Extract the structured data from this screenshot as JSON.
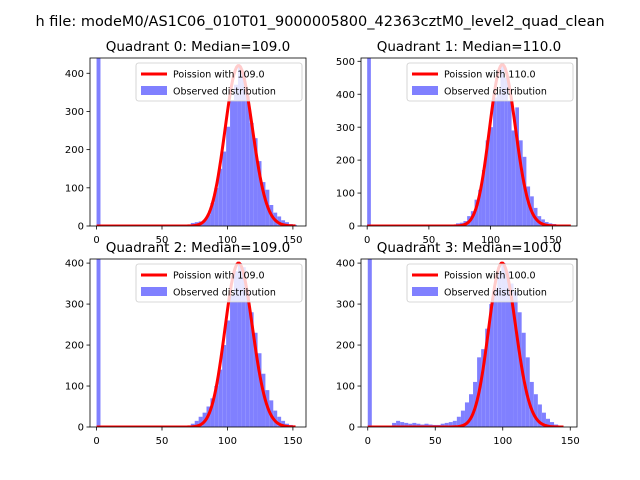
{
  "figure": {
    "suptitle": "h file: modeM0/AS1C06_010T01_9000005800_42363cztM0_level2_quad_clean"
  },
  "colors": {
    "fit_line": "#ff0000",
    "bars": "#8080ff",
    "axes": "#000000",
    "legend_border": "#cccccc"
  },
  "chart_data": [
    {
      "type": "bar",
      "title": "Quadrant 0: Median=109.0",
      "xlim": [
        -5,
        160
      ],
      "ylim": [
        0,
        440
      ],
      "xticks": [
        0,
        50,
        100,
        150
      ],
      "yticks": [
        0,
        100,
        200,
        300,
        400
      ],
      "legend": {
        "placement": "upper-right",
        "entries": [
          "Poission with 109.0",
          "Observed distribution"
        ]
      },
      "bin_width": 3,
      "bins": [
        {
          "x": 0,
          "y": 440
        },
        {
          "x": 72,
          "y": 8
        },
        {
          "x": 75,
          "y": 10
        },
        {
          "x": 78,
          "y": 12
        },
        {
          "x": 81,
          "y": 15
        },
        {
          "x": 84,
          "y": 30
        },
        {
          "x": 87,
          "y": 60
        },
        {
          "x": 90,
          "y": 100
        },
        {
          "x": 93,
          "y": 150
        },
        {
          "x": 96,
          "y": 195
        },
        {
          "x": 99,
          "y": 260
        },
        {
          "x": 102,
          "y": 330
        },
        {
          "x": 105,
          "y": 370
        },
        {
          "x": 108,
          "y": 420
        },
        {
          "x": 111,
          "y": 400
        },
        {
          "x": 114,
          "y": 340
        },
        {
          "x": 117,
          "y": 270
        },
        {
          "x": 120,
          "y": 230
        },
        {
          "x": 123,
          "y": 170
        },
        {
          "x": 126,
          "y": 115
        },
        {
          "x": 129,
          "y": 95
        },
        {
          "x": 132,
          "y": 55
        },
        {
          "x": 135,
          "y": 35
        },
        {
          "x": 138,
          "y": 25
        },
        {
          "x": 141,
          "y": 15
        },
        {
          "x": 144,
          "y": 10
        },
        {
          "x": 147,
          "y": 5
        },
        {
          "x": 150,
          "y": 3
        }
      ],
      "fit": {
        "label": "Poission with 109.0",
        "mean": 109.0,
        "x_range": [
          0,
          152
        ],
        "peak": 420
      }
    },
    {
      "type": "bar",
      "title": "Quadrant 1: Median=110.0",
      "xlim": [
        -5,
        170
      ],
      "ylim": [
        0,
        510
      ],
      "xticks": [
        0,
        50,
        100,
        150
      ],
      "yticks": [
        0,
        100,
        200,
        300,
        400,
        500
      ],
      "legend": {
        "placement": "upper-right",
        "entries": [
          "Poission with 110.0",
          "Observed distribution"
        ]
      },
      "bin_width": 3,
      "bins": [
        {
          "x": 0,
          "y": 510
        },
        {
          "x": 72,
          "y": 8
        },
        {
          "x": 75,
          "y": 10
        },
        {
          "x": 78,
          "y": 15
        },
        {
          "x": 81,
          "y": 30
        },
        {
          "x": 84,
          "y": 45
        },
        {
          "x": 87,
          "y": 80
        },
        {
          "x": 90,
          "y": 110
        },
        {
          "x": 93,
          "y": 170
        },
        {
          "x": 96,
          "y": 260
        },
        {
          "x": 99,
          "y": 300
        },
        {
          "x": 102,
          "y": 390
        },
        {
          "x": 105,
          "y": 400
        },
        {
          "x": 108,
          "y": 490
        },
        {
          "x": 111,
          "y": 450
        },
        {
          "x": 114,
          "y": 380
        },
        {
          "x": 117,
          "y": 290
        },
        {
          "x": 120,
          "y": 360
        },
        {
          "x": 123,
          "y": 260
        },
        {
          "x": 126,
          "y": 210
        },
        {
          "x": 129,
          "y": 120
        },
        {
          "x": 132,
          "y": 90
        },
        {
          "x": 135,
          "y": 55
        },
        {
          "x": 138,
          "y": 30
        },
        {
          "x": 141,
          "y": 20
        },
        {
          "x": 144,
          "y": 12
        },
        {
          "x": 147,
          "y": 8
        },
        {
          "x": 150,
          "y": 6
        },
        {
          "x": 153,
          "y": 3
        }
      ],
      "fit": {
        "label": "Poission with 110.0",
        "mean": 110.0,
        "x_range": [
          0,
          165
        ],
        "peak": 490
      }
    },
    {
      "type": "bar",
      "title": "Quadrant 2: Median=109.0",
      "xlim": [
        -5,
        160
      ],
      "ylim": [
        0,
        410
      ],
      "xticks": [
        0,
        50,
        100,
        150
      ],
      "yticks": [
        0,
        100,
        200,
        300,
        400
      ],
      "legend": {
        "placement": "upper-right",
        "entries": [
          "Poission with 109.0",
          "Observed distribution"
        ]
      },
      "bin_width": 3,
      "bins": [
        {
          "x": 0,
          "y": 410
        },
        {
          "x": 72,
          "y": 8
        },
        {
          "x": 75,
          "y": 15
        },
        {
          "x": 78,
          "y": 25
        },
        {
          "x": 81,
          "y": 35
        },
        {
          "x": 84,
          "y": 50
        },
        {
          "x": 87,
          "y": 70
        },
        {
          "x": 90,
          "y": 100
        },
        {
          "x": 93,
          "y": 140
        },
        {
          "x": 96,
          "y": 200
        },
        {
          "x": 99,
          "y": 260
        },
        {
          "x": 102,
          "y": 320
        },
        {
          "x": 105,
          "y": 380
        },
        {
          "x": 108,
          "y": 400
        },
        {
          "x": 111,
          "y": 390
        },
        {
          "x": 114,
          "y": 330
        },
        {
          "x": 117,
          "y": 280
        },
        {
          "x": 120,
          "y": 230
        },
        {
          "x": 123,
          "y": 180
        },
        {
          "x": 126,
          "y": 130
        },
        {
          "x": 129,
          "y": 90
        },
        {
          "x": 132,
          "y": 65
        },
        {
          "x": 135,
          "y": 40
        },
        {
          "x": 138,
          "y": 25
        },
        {
          "x": 141,
          "y": 15
        },
        {
          "x": 144,
          "y": 8
        },
        {
          "x": 147,
          "y": 5
        }
      ],
      "fit": {
        "label": "Poission with 109.0",
        "mean": 109.0,
        "x_range": [
          0,
          152
        ],
        "peak": 400
      }
    },
    {
      "type": "bar",
      "title": "Quadrant 3: Median=100.0",
      "xlim": [
        -5,
        155
      ],
      "ylim": [
        0,
        410
      ],
      "xticks": [
        0,
        50,
        100,
        150
      ],
      "yticks": [
        0,
        100,
        200,
        300,
        400
      ],
      "legend": {
        "placement": "upper-right",
        "entries": [
          "Poission with 100.0",
          "Observed distribution"
        ]
      },
      "bin_width": 3,
      "bins": [
        {
          "x": 0,
          "y": 410
        },
        {
          "x": 18,
          "y": 10
        },
        {
          "x": 21,
          "y": 15
        },
        {
          "x": 24,
          "y": 12
        },
        {
          "x": 27,
          "y": 10
        },
        {
          "x": 30,
          "y": 8
        },
        {
          "x": 33,
          "y": 10
        },
        {
          "x": 36,
          "y": 8
        },
        {
          "x": 39,
          "y": 6
        },
        {
          "x": 42,
          "y": 8
        },
        {
          "x": 45,
          "y": 6
        },
        {
          "x": 48,
          "y": 5
        },
        {
          "x": 51,
          "y": 5
        },
        {
          "x": 54,
          "y": 8
        },
        {
          "x": 57,
          "y": 10
        },
        {
          "x": 60,
          "y": 12
        },
        {
          "x": 63,
          "y": 15
        },
        {
          "x": 66,
          "y": 25
        },
        {
          "x": 69,
          "y": 40
        },
        {
          "x": 72,
          "y": 60
        },
        {
          "x": 75,
          "y": 80
        },
        {
          "x": 78,
          "y": 110
        },
        {
          "x": 81,
          "y": 170
        },
        {
          "x": 84,
          "y": 190
        },
        {
          "x": 87,
          "y": 240
        },
        {
          "x": 90,
          "y": 300
        },
        {
          "x": 93,
          "y": 340
        },
        {
          "x": 96,
          "y": 380
        },
        {
          "x": 99,
          "y": 400
        },
        {
          "x": 102,
          "y": 380
        },
        {
          "x": 105,
          "y": 350
        },
        {
          "x": 108,
          "y": 330
        },
        {
          "x": 111,
          "y": 280
        },
        {
          "x": 114,
          "y": 230
        },
        {
          "x": 117,
          "y": 170
        },
        {
          "x": 120,
          "y": 110
        },
        {
          "x": 123,
          "y": 80
        },
        {
          "x": 126,
          "y": 55
        },
        {
          "x": 129,
          "y": 35
        },
        {
          "x": 132,
          "y": 20
        },
        {
          "x": 135,
          "y": 12
        },
        {
          "x": 138,
          "y": 6
        },
        {
          "x": 141,
          "y": 3
        }
      ],
      "fit": {
        "label": "Poission with 100.0",
        "mean": 100.0,
        "x_range": [
          0,
          145
        ],
        "peak": 400
      }
    }
  ]
}
